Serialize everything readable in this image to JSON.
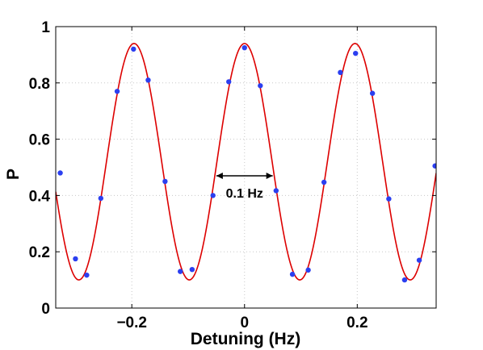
{
  "chart_data": {
    "type": "scatter",
    "xlabel": "Detuning (Hz)",
    "ylabel": "P",
    "xlim": [
      -0.335,
      0.34
    ],
    "ylim": [
      0,
      1
    ],
    "grid": true,
    "legend": "none",
    "x_ticks": [
      {
        "value": -0.2,
        "label": "−0.2"
      },
      {
        "value": 0,
        "label": "0"
      },
      {
        "value": 0.2,
        "label": "0.2"
      }
    ],
    "y_ticks": [
      {
        "value": 0,
        "label": "0"
      },
      {
        "value": 0.2,
        "label": "0.2"
      },
      {
        "value": 0.4,
        "label": "0.4"
      },
      {
        "value": 0.6,
        "label": "0.6"
      },
      {
        "value": 0.8,
        "label": "0.8"
      },
      {
        "value": 1,
        "label": "1"
      }
    ],
    "series": [
      {
        "kind": "fit",
        "style": "line",
        "color": "#dd0000",
        "model": {
          "center": 0.52,
          "amplitude": 0.42,
          "period": 0.196,
          "peak_x": 0
        }
      },
      {
        "kind": "data",
        "style": "markers",
        "color": "#2b3ff0",
        "x": [
          -0.327,
          -0.3,
          -0.28,
          -0.255,
          -0.226,
          -0.197,
          -0.171,
          -0.141,
          -0.114,
          -0.093,
          -0.056,
          -0.028,
          0.0,
          0.028,
          0.056,
          0.085,
          0.113,
          0.141,
          0.17,
          0.197,
          0.227,
          0.256,
          0.284,
          0.31,
          0.338
        ],
        "y": [
          0.48,
          0.175,
          0.117,
          0.39,
          0.77,
          0.92,
          0.81,
          0.45,
          0.13,
          0.137,
          0.4,
          0.804,
          0.925,
          0.79,
          0.417,
          0.12,
          0.135,
          0.447,
          0.837,
          0.905,
          0.763,
          0.388,
          0.1,
          0.17,
          0.505
        ]
      }
    ],
    "annotations": [
      {
        "text": "0.1 Hz",
        "arrow_from": -0.05,
        "arrow_to": 0.05,
        "arrow_y": 0.47,
        "text_x": 0.0,
        "text_y": 0.41
      }
    ]
  }
}
